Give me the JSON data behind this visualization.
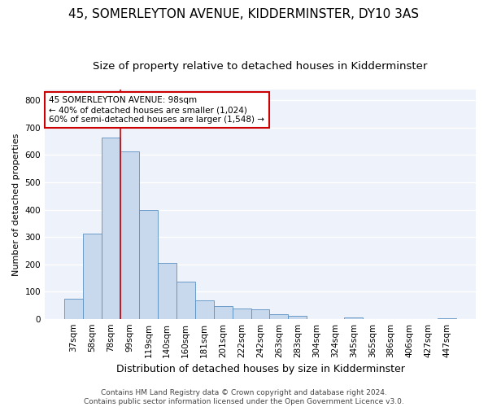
{
  "title": "45, SOMERLEYTON AVENUE, KIDDERMINSTER, DY10 3AS",
  "subtitle": "Size of property relative to detached houses in Kidderminster",
  "xlabel": "Distribution of detached houses by size in Kidderminster",
  "ylabel": "Number of detached properties",
  "footer_line1": "Contains HM Land Registry data © Crown copyright and database right 2024.",
  "footer_line2": "Contains public sector information licensed under the Open Government Licence v3.0.",
  "categories": [
    "37sqm",
    "58sqm",
    "78sqm",
    "99sqm",
    "119sqm",
    "140sqm",
    "160sqm",
    "181sqm",
    "201sqm",
    "222sqm",
    "242sqm",
    "263sqm",
    "283sqm",
    "304sqm",
    "324sqm",
    "345sqm",
    "365sqm",
    "386sqm",
    "406sqm",
    "427sqm",
    "447sqm"
  ],
  "values": [
    75,
    313,
    663,
    612,
    400,
    205,
    135,
    68,
    48,
    38,
    35,
    18,
    10,
    0,
    0,
    5,
    0,
    0,
    0,
    0,
    3
  ],
  "bar_color": "#c9d9ed",
  "bar_edge_color": "#5a8fc2",
  "vline_color": "#cc0000",
  "vline_x": 2.5,
  "annotation_text": "45 SOMERLEYTON AVENUE: 98sqm\n← 40% of detached houses are smaller (1,024)\n60% of semi-detached houses are larger (1,548) →",
  "annotation_box_color": "#cc0000",
  "ylim": [
    0,
    840
  ],
  "yticks": [
    0,
    100,
    200,
    300,
    400,
    500,
    600,
    700,
    800
  ],
  "bg_color": "#eef2fa",
  "grid_color": "#ffffff",
  "title_fontsize": 11,
  "subtitle_fontsize": 9.5,
  "ylabel_fontsize": 8,
  "xlabel_fontsize": 9,
  "tick_fontsize": 7.5,
  "footer_fontsize": 6.5,
  "ann_fontsize": 7.5
}
